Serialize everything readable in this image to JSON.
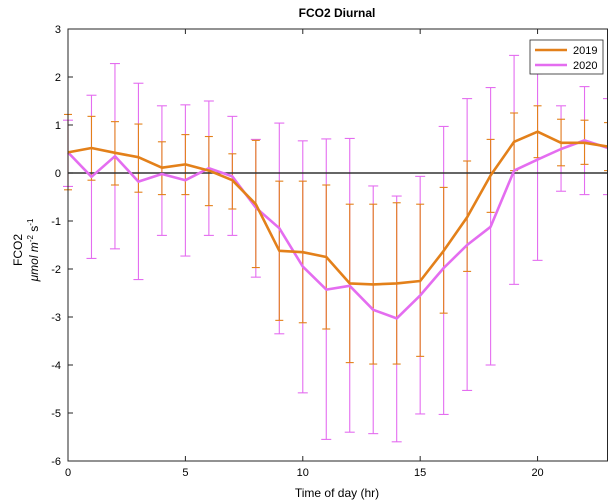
{
  "chart_data": {
    "type": "line",
    "title": "FCO2 Diurnal",
    "xlabel": "Time of day (hr)",
    "ylabel_line1": "FCO2",
    "ylabel_line2_parts": [
      "μmol m",
      "-2",
      " s",
      "-1"
    ],
    "xlim": [
      0,
      23
    ],
    "ylim": [
      -6,
      3
    ],
    "xticks": [
      0,
      5,
      10,
      15,
      20
    ],
    "yticks": [
      -6,
      -5,
      -4,
      -3,
      -2,
      -1,
      0,
      1,
      2,
      3
    ],
    "reference_line_y": 0,
    "grid": false,
    "legend_position": "top-right",
    "x": [
      0,
      1,
      2,
      3,
      4,
      5,
      6,
      7,
      8,
      9,
      10,
      11,
      12,
      13,
      14,
      15,
      16,
      17,
      18,
      19,
      20,
      21,
      22,
      23
    ],
    "series": [
      {
        "name": "2019",
        "color": "#e3801a",
        "values": [
          0.43,
          0.52,
          0.42,
          0.33,
          0.11,
          0.18,
          0.05,
          -0.15,
          -0.65,
          -1.62,
          -1.65,
          -1.75,
          -2.3,
          -2.32,
          -2.3,
          -2.25,
          -1.62,
          -0.92,
          -0.05,
          0.65,
          0.86,
          0.63,
          0.63,
          0.55
        ],
        "upper": [
          1.22,
          1.18,
          1.07,
          1.02,
          0.65,
          0.8,
          0.76,
          0.4,
          0.68,
          -0.17,
          -0.17,
          -0.25,
          -0.65,
          -0.65,
          -0.62,
          -0.65,
          -0.3,
          0.25,
          0.7,
          1.25,
          1.4,
          1.12,
          1.1,
          1.05
        ],
        "lower": [
          -0.35,
          -0.15,
          -0.25,
          -0.4,
          -0.45,
          -0.45,
          -0.68,
          -0.75,
          -1.97,
          -3.07,
          -3.12,
          -3.25,
          -3.95,
          -3.98,
          -3.98,
          -3.82,
          -2.92,
          -2.05,
          -0.82,
          0.05,
          0.32,
          0.15,
          0.18,
          0.05
        ]
      },
      {
        "name": "2020",
        "color": "#e46df0",
        "values": [
          0.43,
          -0.08,
          0.35,
          -0.18,
          -0.02,
          -0.15,
          0.1,
          -0.07,
          -0.72,
          -1.15,
          -1.95,
          -2.43,
          -2.35,
          -2.85,
          -3.03,
          -2.55,
          -1.98,
          -1.5,
          -1.12,
          0.05,
          0.28,
          0.5,
          0.68,
          0.52
        ],
        "upper": [
          1.1,
          1.62,
          2.28,
          1.87,
          1.4,
          1.42,
          1.5,
          1.18,
          0.7,
          1.04,
          0.67,
          0.71,
          0.72,
          -0.27,
          -0.48,
          -0.07,
          0.97,
          1.55,
          1.78,
          2.45,
          2.07,
          1.4,
          1.8,
          1.55
        ],
        "lower": [
          -0.28,
          -1.78,
          -1.58,
          -2.22,
          -1.3,
          -1.73,
          -1.3,
          -1.3,
          -2.17,
          -3.35,
          -4.58,
          -5.55,
          -5.4,
          -5.43,
          -5.6,
          -5.02,
          -5.03,
          -4.53,
          -4.0,
          -2.32,
          -1.82,
          -0.38,
          -0.45,
          -0.45
        ]
      }
    ]
  }
}
